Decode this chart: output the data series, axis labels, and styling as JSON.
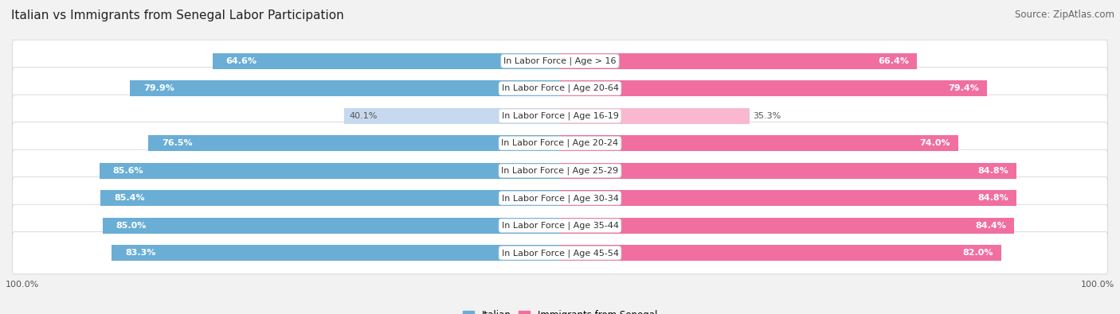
{
  "title": "Italian vs Immigrants from Senegal Labor Participation",
  "source": "Source: ZipAtlas.com",
  "categories": [
    "In Labor Force | Age > 16",
    "In Labor Force | Age 20-64",
    "In Labor Force | Age 16-19",
    "In Labor Force | Age 20-24",
    "In Labor Force | Age 25-29",
    "In Labor Force | Age 30-34",
    "In Labor Force | Age 35-44",
    "In Labor Force | Age 45-54"
  ],
  "italian_values": [
    64.6,
    79.9,
    40.1,
    76.5,
    85.6,
    85.4,
    85.0,
    83.3
  ],
  "senegal_values": [
    66.4,
    79.4,
    35.3,
    74.0,
    84.8,
    84.8,
    84.4,
    82.0
  ],
  "italian_color": "#6aaed6",
  "italian_color_light": "#c6d9ee",
  "senegal_color": "#f06fa0",
  "senegal_color_light": "#f9b8d0",
  "max_value": 100.0,
  "bg_color": "#f2f2f2",
  "row_bg_color": "#ffffff",
  "title_fontsize": 11,
  "source_fontsize": 8.5,
  "value_fontsize": 8,
  "category_fontsize": 8
}
